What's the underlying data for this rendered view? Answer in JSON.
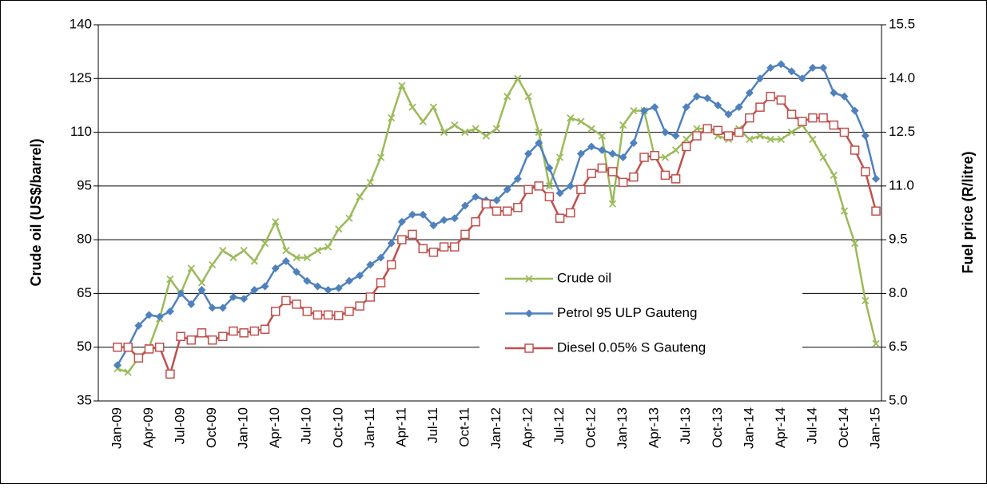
{
  "chart_data": {
    "type": "line",
    "categories": [
      "Jan-09",
      null,
      null,
      "Apr-09",
      null,
      null,
      "Jul-09",
      null,
      null,
      "Oct-09",
      null,
      null,
      "Jan-10",
      null,
      null,
      "Apr-10",
      null,
      null,
      "Jul-10",
      null,
      null,
      "Oct-10",
      null,
      null,
      "Jan-11",
      null,
      null,
      "Apr-11",
      null,
      null,
      "Jul-11",
      null,
      null,
      "Oct-11",
      null,
      null,
      "Jan-12",
      null,
      null,
      "Apr-12",
      null,
      null,
      "Jul-12",
      null,
      null,
      "Oct-12",
      null,
      null,
      "Jan-13",
      null,
      null,
      "Apr-13",
      null,
      null,
      "Jul-13",
      null,
      null,
      "Oct-13",
      null,
      null,
      "Jan-14",
      null,
      null,
      "Apr-14",
      null,
      null,
      "Jul-14",
      null,
      null,
      "Oct-14",
      null,
      null,
      "Jan-15"
    ],
    "y_label": "Crude oil (US$/barrel)",
    "y2_label": "Fuel price (R/litre)",
    "ylim": [
      35,
      140
    ],
    "yticks": [
      35,
      50,
      65,
      80,
      95,
      110,
      125,
      140
    ],
    "y2lim": [
      5,
      15.5
    ],
    "y2ticks": [
      {
        "value": 5,
        "label": "5.0"
      },
      6.5,
      {
        "value": 8,
        "label": "8.0"
      },
      9.5,
      {
        "value": 11,
        "label": "11.0"
      },
      12.5,
      {
        "value": 14,
        "label": "14.0"
      },
      15.5
    ],
    "grid": true,
    "legend": "center",
    "series": [
      {
        "name": "Crude oil",
        "color": "#9BBB59",
        "marker": "x",
        "values": [
          44,
          43,
          47,
          50,
          58,
          69,
          65,
          72,
          68,
          73,
          77,
          75,
          77,
          74,
          79,
          85,
          77,
          75,
          75,
          77,
          78,
          83,
          86,
          92,
          96,
          103,
          114,
          123,
          117,
          113,
          117,
          110,
          112,
          110,
          111,
          109,
          111,
          120,
          125,
          120,
          110,
          95,
          103,
          114,
          113,
          111,
          109,
          90,
          112,
          116,
          116,
          103,
          103,
          105,
          108,
          111,
          111,
          109,
          108,
          111,
          108,
          109,
          108,
          108,
          110,
          112,
          108,
          103,
          98,
          88,
          79,
          63,
          51
        ]
      },
      {
        "name": "Petrol 95 ULP Gauteng",
        "color": "#4F81BD",
        "marker": "diamond",
        "axis": "y2",
        "values": [
          6.0,
          6.5,
          7.1,
          7.4,
          7.35,
          7.5,
          8.0,
          7.7,
          8.1,
          7.6,
          7.6,
          7.9,
          7.85,
          8.1,
          8.2,
          8.7,
          8.9,
          8.6,
          8.35,
          8.2,
          8.1,
          8.15,
          8.35,
          8.5,
          8.8,
          9.0,
          9.4,
          10.0,
          10.2,
          10.2,
          9.9,
          10.05,
          10.1,
          10.45,
          10.7,
          10.6,
          10.6,
          10.9,
          11.2,
          11.9,
          12.2,
          11.5,
          10.8,
          11.0,
          11.9,
          12.1,
          12.0,
          11.9,
          11.8,
          12.2,
          13.1,
          13.2,
          12.5,
          12.4,
          13.2,
          13.5,
          13.45,
          13.25,
          13.0,
          13.2,
          13.6,
          14.0,
          14.3,
          14.4,
          14.2,
          14.0,
          14.3,
          14.3,
          13.6,
          13.5,
          13.1,
          12.4,
          11.2
        ]
      },
      {
        "name": "Diesel 0.05% S Gauteng",
        "color": "#C0504D",
        "marker": "square",
        "axis": "y2",
        "values": [
          6.5,
          6.5,
          6.2,
          6.45,
          6.5,
          5.75,
          6.8,
          6.7,
          6.9,
          6.7,
          6.8,
          6.95,
          6.9,
          6.95,
          7.0,
          7.5,
          7.8,
          7.7,
          7.5,
          7.4,
          7.4,
          7.38,
          7.5,
          7.65,
          7.9,
          8.3,
          8.8,
          9.5,
          9.65,
          9.25,
          9.15,
          9.3,
          9.3,
          9.65,
          10.0,
          10.5,
          10.3,
          10.3,
          10.4,
          10.9,
          11.0,
          10.7,
          10.1,
          10.25,
          10.9,
          11.35,
          11.5,
          11.4,
          11.1,
          11.25,
          11.8,
          11.85,
          11.3,
          11.2,
          12.1,
          12.4,
          12.6,
          12.55,
          12.4,
          12.5,
          12.9,
          13.2,
          13.5,
          13.4,
          13.0,
          12.8,
          12.9,
          12.9,
          12.7,
          12.5,
          12.0,
          11.4,
          10.3
        ]
      }
    ]
  }
}
